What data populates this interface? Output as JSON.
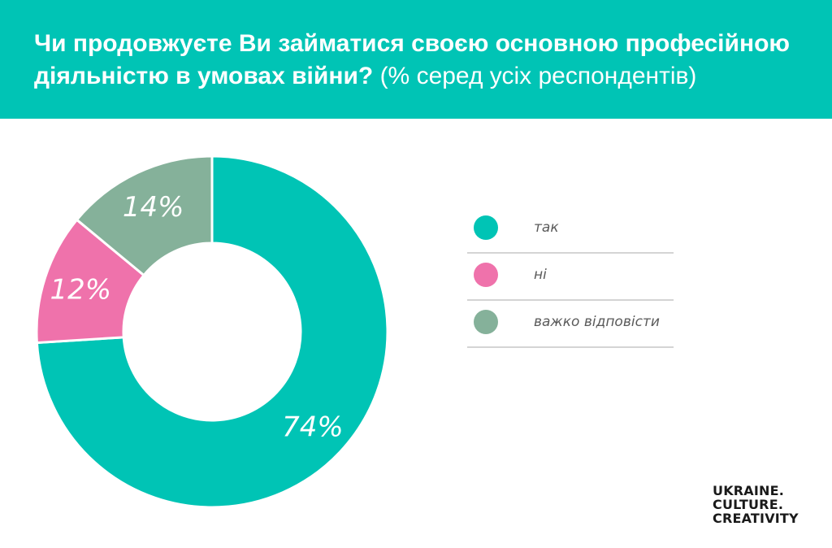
{
  "title": {
    "bold": "Чи продовжуєте Ви займатися своєю основною професійною діяльністю в умовах війни?",
    "light": "(% серед усіх респондентів)"
  },
  "chart_data": {
    "type": "pie",
    "subtype": "donut",
    "categories": [
      "так",
      "ні",
      "важко відповісти"
    ],
    "values": [
      74,
      12,
      14
    ],
    "labels": [
      "74%",
      "12%",
      "14%"
    ],
    "colors": [
      "#00c4b5",
      "#ef72ab",
      "#85b19a"
    ],
    "legend_position": "right"
  },
  "logo": {
    "lines": [
      "UKRAINE.",
      "CULTURE.",
      "CREATIVITY"
    ]
  },
  "colors": {
    "header_background": "#00c4b5",
    "title_text": "#ffffff",
    "legend_divider": "#d4d4d4"
  }
}
